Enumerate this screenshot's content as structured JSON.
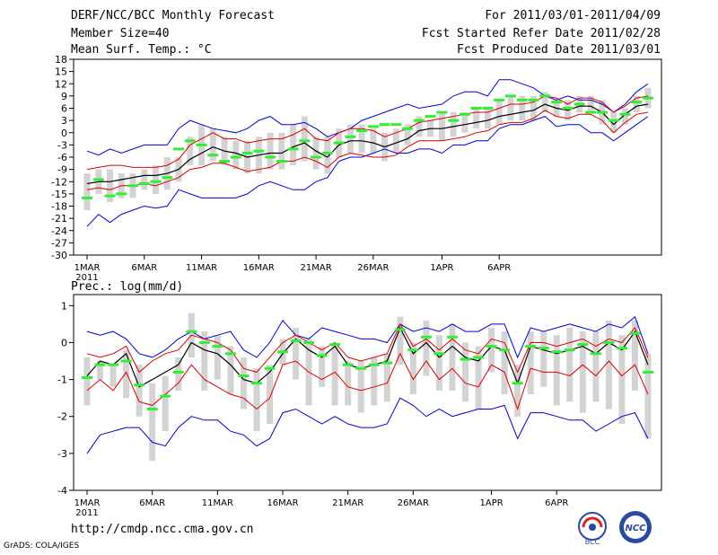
{
  "header": {
    "title": "DERF/NCC/BCC Monthly Forecast",
    "member": "Member Size=40",
    "variable": "Mean Surf. Temp.: °C",
    "period": "For 2011/03/01-2011/04/09",
    "start": "Fcst Started Refer Date 2011/02/28",
    "produced": "Fcst Produced Date 2011/03/01"
  },
  "footer": {
    "url": "http://cmdp.ncc.cma.gov.cn",
    "credit": "GrADS: COLA/IGES",
    "logo_bcc": "BCC",
    "logo_ncc": "NCC"
  },
  "colors": {
    "box": "#d3d3d3",
    "median": "#33ee33",
    "mean": "#000000",
    "std": "#dd0000",
    "extreme": "#0000dd"
  },
  "chart_data": [
    {
      "type": "boxplot+line",
      "title": "Mean Surf. Temp.: °C",
      "x_ticks": [
        "1MAR",
        "6MAR",
        "11MAR",
        "16MAR",
        "21MAR",
        "26MAR",
        "1APR",
        "6APR"
      ],
      "x_sublabel": "2011",
      "y_ticks": [
        18,
        15,
        12,
        9,
        6,
        3,
        0,
        -3,
        -6,
        -9,
        -12,
        -15,
        -18,
        -21,
        -24,
        -27,
        -30
      ],
      "ylim": [
        -30,
        18
      ],
      "mean": [
        -12.5,
        -12,
        -12,
        -11.5,
        -11,
        -10.5,
        -10.5,
        -10,
        -9,
        -6.5,
        -5,
        -3.5,
        -4.5,
        -5,
        -6,
        -5.5,
        -5,
        -5,
        -3.5,
        -2.5,
        -4.5,
        -6,
        -3,
        -2,
        -2,
        -2.5,
        -3.5,
        -2.5,
        -1.5,
        0.5,
        1,
        1,
        1.5,
        2,
        2.5,
        3,
        4,
        4.5,
        5,
        5.5,
        7,
        6,
        5.5,
        6.5,
        6.5,
        5,
        2,
        4.5,
        6.5,
        7
      ],
      "upper": [
        -9,
        -8.5,
        -8,
        -8,
        -8.5,
        -8.5,
        -8.5,
        -8,
        -6.5,
        -3,
        -1.5,
        0,
        -1.5,
        -1.5,
        -2.5,
        -2,
        -1.5,
        -1.5,
        -0.5,
        1,
        -1.5,
        -2,
        0,
        1,
        1,
        0.5,
        -1,
        0,
        1,
        2.5,
        3,
        3.5,
        4,
        4.5,
        5,
        5,
        6,
        7,
        7,
        7.5,
        9,
        8.5,
        7,
        8.5,
        8.5,
        7.5,
        5,
        6.5,
        8.5,
        9
      ],
      "lower": [
        -14,
        -13.5,
        -14,
        -13,
        -13,
        -12.5,
        -13,
        -12,
        -11,
        -9,
        -8.5,
        -7.5,
        -7.5,
        -8.5,
        -9.5,
        -9,
        -8.5,
        -7,
        -7,
        -6,
        -7,
        -8.5,
        -6,
        -5,
        -5.5,
        -6,
        -6,
        -5.5,
        -3.5,
        -2,
        -2,
        -2,
        -1.5,
        -1,
        0,
        0.5,
        2,
        2.5,
        2.5,
        3.5,
        5.5,
        4,
        3.5,
        4.5,
        4.5,
        3,
        0,
        2.5,
        4.5,
        5
      ],
      "maximum": [
        -4.5,
        -5.5,
        -4,
        -5,
        -4,
        -3,
        -3,
        -3,
        1,
        3,
        2,
        1,
        0.5,
        0,
        1,
        3,
        4,
        2,
        2,
        2.5,
        1,
        -1,
        0,
        1,
        3,
        4,
        5,
        6,
        7,
        6,
        6.5,
        7,
        9,
        10,
        10,
        9,
        13,
        13,
        12,
        11,
        9,
        8,
        9,
        8,
        8,
        7,
        5,
        7,
        10,
        12
      ],
      "minimum": [
        -23,
        -20,
        -22,
        -20,
        -19,
        -18,
        -18.5,
        -18,
        -14,
        -15,
        -16,
        -16,
        -16,
        -16,
        -15,
        -13,
        -12,
        -13,
        -14,
        -14,
        -12,
        -11,
        -7,
        -6,
        -6,
        -5,
        -4,
        -5,
        -5,
        -4,
        -4,
        -5,
        -3,
        -3,
        -2,
        -2,
        1,
        2,
        2,
        3,
        4,
        1.5,
        2,
        2,
        0,
        0,
        -2,
        0,
        2,
        4
      ],
      "box_low": [
        -19,
        -15,
        -17,
        -16,
        -16,
        -14,
        -15,
        -14,
        -12,
        -8,
        -8,
        -7,
        -8,
        -9,
        -10,
        -10,
        -9,
        -9,
        -8,
        -7,
        -9,
        -10,
        -6,
        -5,
        -5,
        -5,
        -7,
        -5,
        -3,
        -1,
        -1,
        -2,
        -1,
        0,
        1,
        1,
        2,
        3,
        3,
        3,
        5,
        4,
        3,
        5,
        5,
        2,
        0,
        2,
        5,
        6
      ],
      "box_high": [
        -10,
        -9,
        -9,
        -10,
        -10,
        -9,
        -8,
        -6,
        -6,
        -1,
        2,
        1,
        -1,
        -2,
        -2,
        -1,
        0,
        0,
        2,
        4,
        -1,
        -1,
        1,
        2,
        2,
        1,
        0,
        1,
        2,
        4,
        3,
        5,
        5,
        5,
        6,
        6,
        8,
        9,
        9,
        9,
        10,
        8,
        8,
        9,
        9,
        8,
        5,
        6,
        9,
        11
      ],
      "median": [
        -16,
        -11.5,
        -15.5,
        -15,
        -13,
        -12.5,
        -12,
        -11,
        -4,
        -2,
        -3,
        -5.5,
        -7,
        -6,
        -5,
        -4.5,
        -6,
        -7,
        -4,
        -2,
        -6,
        -5,
        -2.5,
        -1,
        0.5,
        1.5,
        2,
        2,
        1,
        3,
        4,
        5,
        3,
        4.5,
        6,
        6,
        8,
        9,
        8,
        8,
        9,
        7.5,
        6,
        7,
        5,
        5,
        3,
        4.5,
        7.5,
        8.5
      ]
    },
    {
      "type": "boxplot+line",
      "title": "Prec.: log(mm/d)",
      "x_ticks": [
        "1MAR",
        "6MAR",
        "11MAR",
        "16MAR",
        "21MAR",
        "26MAR",
        "1APR",
        "6APR"
      ],
      "x_sublabel": "2011",
      "y_ticks": [
        1,
        0,
        -1,
        -2,
        -3,
        -4
      ],
      "ylim": [
        -4,
        1.3
      ],
      "mean": [
        -0.9,
        -0.5,
        -0.6,
        -0.3,
        -1.2,
        -1.0,
        -0.8,
        -0.6,
        0.0,
        -0.2,
        -0.3,
        -0.6,
        -1.0,
        -1.1,
        -0.8,
        -0.3,
        0.1,
        -0.2,
        -0.4,
        -0.1,
        -0.6,
        -0.7,
        -0.6,
        -0.5,
        0.4,
        -0.3,
        0.0,
        -0.4,
        -0.1,
        -0.4,
        -0.5,
        -0.1,
        -0.2,
        -1.1,
        -0.1,
        -0.2,
        -0.3,
        -0.2,
        -0.1,
        -0.3,
        0.0,
        -0.2,
        0.3,
        -0.6
      ],
      "upper": [
        -0.3,
        -0.4,
        -0.3,
        -0.1,
        -0.8,
        -0.5,
        -0.3,
        -0.2,
        0.2,
        0.1,
        0.0,
        -0.2,
        -0.7,
        -0.8,
        -0.4,
        0.0,
        0.2,
        0.0,
        -0.2,
        0.0,
        -0.4,
        -0.5,
        -0.4,
        -0.3,
        0.5,
        -0.1,
        0.1,
        -0.2,
        0.1,
        -0.2,
        -0.3,
        0.1,
        0.0,
        -0.8,
        0.0,
        0.0,
        -0.1,
        0.0,
        0.1,
        -0.1,
        0.1,
        0.0,
        0.4,
        -0.4
      ],
      "lower": [
        -1.3,
        -1.0,
        -1.3,
        -0.8,
        -1.6,
        -1.7,
        -1.4,
        -1.1,
        -0.6,
        -1.0,
        -1.2,
        -1.4,
        -1.5,
        -1.8,
        -1.5,
        -0.6,
        -0.5,
        -0.8,
        -1.0,
        -0.8,
        -1.2,
        -1.3,
        -1.2,
        -1.1,
        -0.3,
        -1.0,
        -0.5,
        -1.0,
        -0.7,
        -1.1,
        -1.2,
        -0.6,
        -0.8,
        -1.8,
        -0.7,
        -0.8,
        -0.8,
        -0.9,
        -0.6,
        -0.9,
        -0.5,
        -0.9,
        -0.6,
        -1.4
      ],
      "maximum": [
        0.3,
        0.2,
        0.3,
        0.1,
        -0.3,
        -0.4,
        -0.2,
        0.1,
        0.3,
        0.1,
        0.2,
        0.3,
        -0.2,
        -0.4,
        0.0,
        0.6,
        0.2,
        0.1,
        0.4,
        0.3,
        0.2,
        0.1,
        0.1,
        0.0,
        0.5,
        0.3,
        0.4,
        0.3,
        0.5,
        0.3,
        0.3,
        0.5,
        0.5,
        -0.4,
        0.4,
        0.3,
        0.4,
        0.5,
        0.4,
        0.3,
        0.5,
        0.4,
        0.7,
        -0.3
      ],
      "minimum": [
        -3.0,
        -2.5,
        -2.4,
        -2.3,
        -2.3,
        -2.7,
        -2.8,
        -2.3,
        -2.0,
        -2.1,
        -2.1,
        -2.4,
        -2.5,
        -2.8,
        -2.6,
        -1.9,
        -1.8,
        -2.0,
        -2.2,
        -2.0,
        -2.2,
        -2.3,
        -2.3,
        -2.2,
        -1.5,
        -1.7,
        -2.0,
        -1.8,
        -2.0,
        -1.9,
        -1.8,
        -1.8,
        -1.7,
        -2.6,
        -1.9,
        -1.9,
        -2.0,
        -2.1,
        -2.1,
        -2.4,
        -2.2,
        -2.0,
        -1.9,
        -2.6
      ],
      "box_low": [
        -1.7,
        -1.0,
        -1.2,
        -1.5,
        -2.0,
        -3.2,
        -2.4,
        -1.3,
        -0.4,
        -1.3,
        -1.0,
        -1.4,
        -1.8,
        -2.4,
        -2.2,
        -0.6,
        -1.0,
        -1.7,
        -1.2,
        -1.7,
        -1.7,
        -1.9,
        -1.7,
        -1.6,
        -0.6,
        -1.4,
        -0.9,
        -1.3,
        -1.3,
        -1.6,
        -1.8,
        -0.8,
        -1.4,
        -2.0,
        -1.4,
        -1.2,
        -1.7,
        -1.6,
        -1.9,
        -1.6,
        -1.8,
        -2.2,
        -1.3,
        -2.6
      ],
      "box_high": [
        -0.4,
        -0.5,
        -0.6,
        -0.2,
        -0.6,
        -1.1,
        -0.9,
        -0.4,
        0.8,
        0.3,
        0.2,
        -0.1,
        -0.4,
        -0.7,
        -0.6,
        0.1,
        0.4,
        0.1,
        -0.1,
        0.0,
        -0.5,
        -0.5,
        -0.4,
        -0.3,
        0.7,
        0.0,
        0.6,
        0.2,
        0.5,
        0.0,
        -0.1,
        0.4,
        0.3,
        -0.6,
        0.3,
        0.3,
        0.2,
        0.4,
        0.3,
        0.3,
        0.6,
        0.2,
        0.6,
        -0.3
      ],
      "median": [
        -0.95,
        -0.6,
        -0.6,
        -0.5,
        -1.15,
        -1.8,
        -1.45,
        -0.8,
        0.3,
        0.0,
        -0.1,
        -0.3,
        -0.9,
        -1.1,
        -0.7,
        -0.25,
        0.05,
        0.0,
        -0.35,
        -0.05,
        -0.6,
        -0.7,
        -0.6,
        -0.55,
        0.35,
        -0.2,
        0.15,
        -0.3,
        0.15,
        -0.45,
        -0.4,
        -0.1,
        -0.2,
        -1.1,
        -0.1,
        -0.15,
        -0.25,
        -0.2,
        -0.05,
        -0.3,
        0.0,
        -0.15,
        0.25,
        -0.8
      ]
    }
  ]
}
